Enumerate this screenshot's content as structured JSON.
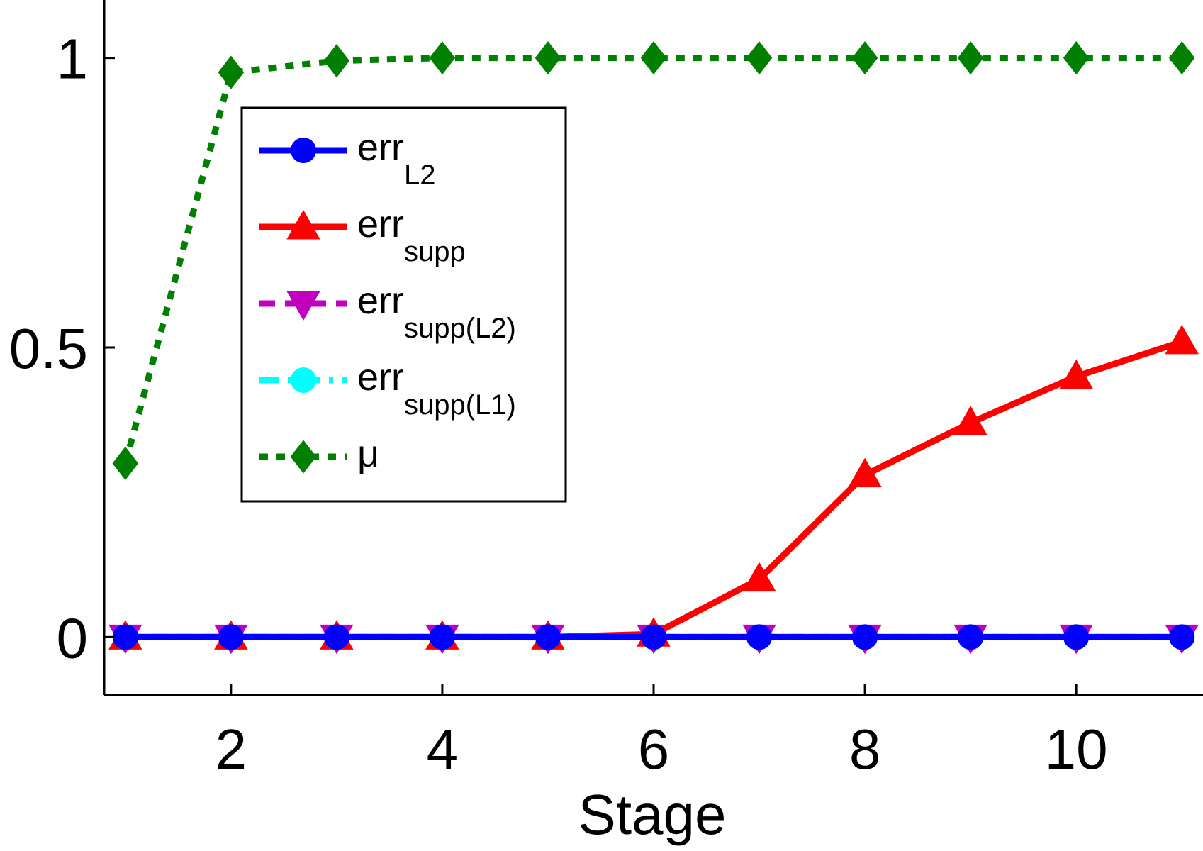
{
  "chart_data": {
    "type": "line",
    "title": "",
    "xlabel": "Stage",
    "ylabel": "",
    "xlim": [
      0.8,
      11.2
    ],
    "ylim": [
      -0.1,
      1.1
    ],
    "xticks": [
      2,
      4,
      6,
      8,
      10
    ],
    "xtick_labels": [
      "2",
      "4",
      "6",
      "8",
      "10"
    ],
    "yticks": [
      0,
      0.5,
      1
    ],
    "ytick_labels": [
      "0",
      "0.5",
      "1"
    ],
    "grid": false,
    "legend_position": "upper-left",
    "x": [
      1,
      2,
      3,
      4,
      5,
      6,
      7,
      8,
      9,
      10,
      11
    ],
    "series": [
      {
        "name": "err",
        "subscript": "L2",
        "color": "#0000ff",
        "line": "solid",
        "marker": "circle",
        "values": [
          0,
          0,
          0,
          0,
          0,
          0,
          0,
          0,
          0,
          0,
          0
        ]
      },
      {
        "name": "err",
        "subscript": "supp",
        "color": "#ff0000",
        "line": "solid",
        "marker": "triangle-up",
        "values": [
          0,
          0,
          0,
          0,
          0,
          0.005,
          0.1,
          0.28,
          0.37,
          0.45,
          0.51
        ]
      },
      {
        "name": "err",
        "subscript": "supp(L2)",
        "color": "#bf00bf",
        "line": "dashed",
        "marker": "triangle-down",
        "values": [
          0,
          0,
          0,
          0,
          0,
          0,
          0,
          0,
          0,
          0,
          0
        ]
      },
      {
        "name": "err",
        "subscript": "supp(L1)",
        "color": "#00ffff",
        "line": "dashdot",
        "marker": "circle",
        "values": [
          0,
          0,
          0,
          0,
          0,
          0,
          0,
          0,
          0,
          0,
          0
        ]
      },
      {
        "name": "μ",
        "subscript": "",
        "color": "#007f00",
        "line": "dotted",
        "marker": "diamond",
        "values": [
          0.3,
          0.975,
          0.995,
          1,
          1,
          1,
          1,
          1,
          1,
          1,
          1
        ]
      }
    ]
  }
}
